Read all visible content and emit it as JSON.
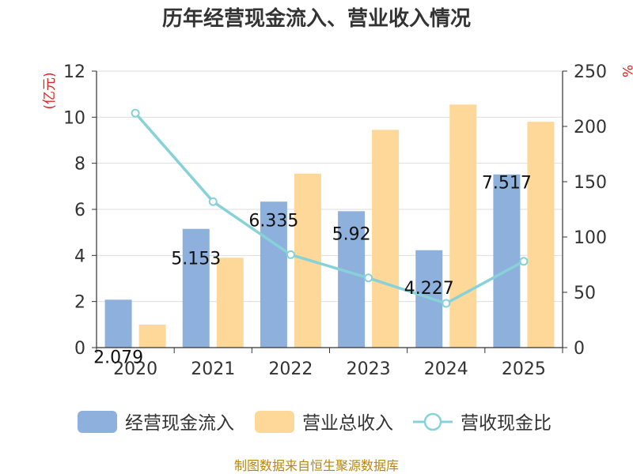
{
  "chart_data": {
    "type": "bar",
    "title": "历年经营现金流入、营业收入情况",
    "categories": [
      "2020",
      "2021",
      "2022",
      "2023",
      "2024",
      "2025"
    ],
    "series": [
      {
        "name": "经营现金流入",
        "kind": "bar",
        "axis": "left",
        "color": "#8eb0dc",
        "values": [
          2.079,
          5.153,
          6.335,
          5.92,
          4.227,
          7.517
        ]
      },
      {
        "name": "营业总收入",
        "kind": "bar",
        "axis": "left",
        "color": "#fdd898",
        "values": [
          1.0,
          3.9,
          7.55,
          9.45,
          10.55,
          9.8
        ]
      },
      {
        "name": "营收现金比",
        "kind": "line",
        "axis": "right",
        "color": "#86d2d8",
        "values": [
          212,
          132,
          84,
          63,
          40,
          78
        ]
      }
    ],
    "data_labels": [
      "2.079",
      "5.153",
      "6.335",
      "5.92",
      "4.227",
      "7.517"
    ],
    "y_left": {
      "label": "(亿元)",
      "ticks": [
        "0",
        "2",
        "4",
        "6",
        "8",
        "10",
        "12"
      ],
      "range": [
        0,
        12
      ]
    },
    "y_right": {
      "label": "%",
      "ticks": [
        "0",
        "50",
        "100",
        "150",
        "200",
        "250"
      ],
      "range": [
        0,
        250
      ]
    },
    "legend": [
      {
        "name": "经营现金流入",
        "marker": "bar",
        "color": "#8eb0dc"
      },
      {
        "name": "营业总收入",
        "marker": "bar",
        "color": "#fdd898"
      },
      {
        "name": "营收现金比",
        "marker": "line",
        "color": "#86d2d8"
      }
    ],
    "legend_position": "bottom",
    "grid": true,
    "source": "制图数据来自恒生聚源数据库",
    "colors": {
      "left_label": "#dd2222",
      "source": "#b8860b",
      "axis": "#333333",
      "grid": "#dddddd"
    }
  }
}
